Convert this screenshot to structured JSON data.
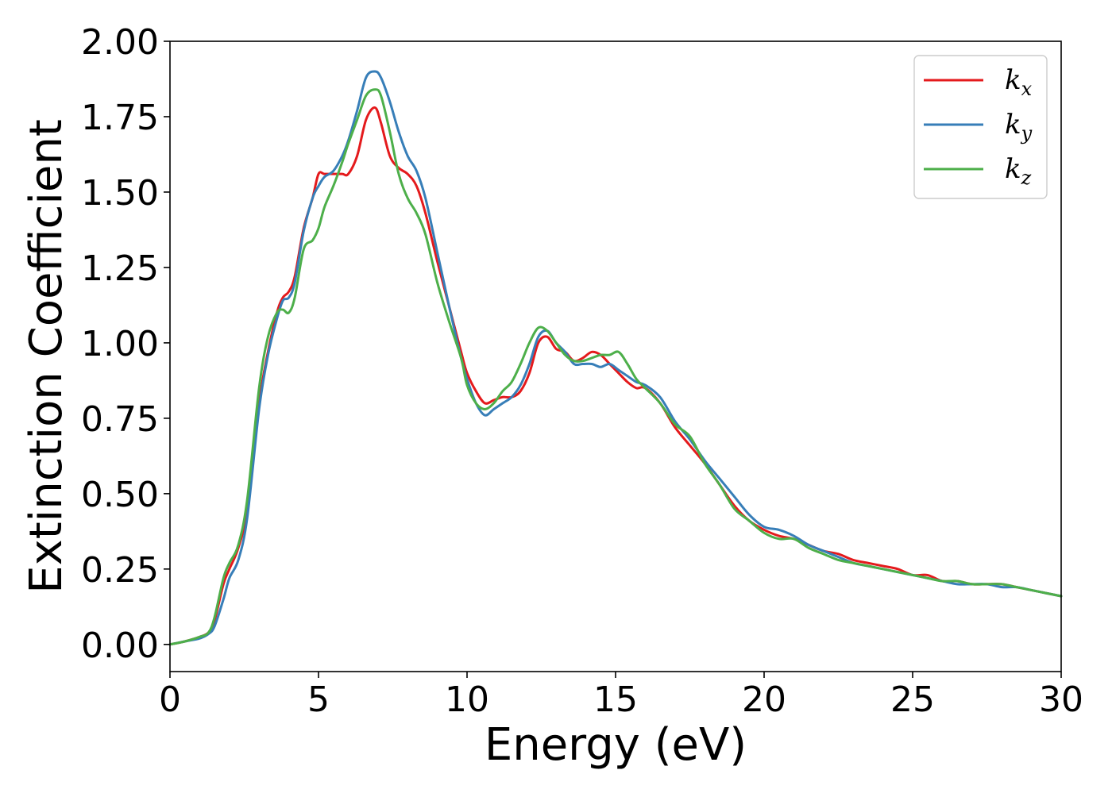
{
  "chart_data": {
    "type": "line",
    "xlabel": "Energy (eV)",
    "ylabel": "Extinction Coefficient",
    "xlim": [
      0,
      30
    ],
    "ylim": [
      -0.09,
      2.0
    ],
    "xticks": [
      0,
      5,
      10,
      15,
      20,
      25,
      30
    ],
    "xtick_labels": [
      "0",
      "5",
      "10",
      "15",
      "20",
      "25",
      "30"
    ],
    "yticks": [
      0.0,
      0.25,
      0.5,
      0.75,
      1.0,
      1.25,
      1.5,
      1.75,
      2.0
    ],
    "ytick_labels": [
      "0.00",
      "0.25",
      "0.50",
      "0.75",
      "1.00",
      "1.25",
      "1.50",
      "1.75",
      "2.00"
    ],
    "grid": false,
    "legend_position": "top-right",
    "series": [
      {
        "name": "k_x",
        "label_main": "k",
        "label_sub": "x",
        "color": "#e41a1c",
        "x": [
          0,
          0.5,
          1.0,
          1.3,
          1.5,
          1.8,
          2.0,
          2.3,
          2.6,
          3.0,
          3.3,
          3.6,
          3.8,
          4.0,
          4.2,
          4.5,
          4.8,
          5.0,
          5.2,
          5.5,
          5.8,
          6.0,
          6.3,
          6.6,
          6.9,
          7.1,
          7.4,
          7.7,
          8.0,
          8.3,
          8.6,
          9.0,
          9.4,
          9.8,
          10.0,
          10.3,
          10.6,
          10.9,
          11.2,
          11.5,
          11.8,
          12.1,
          12.4,
          12.7,
          13.0,
          13.3,
          13.6,
          13.9,
          14.2,
          14.5,
          14.8,
          15.1,
          15.4,
          15.7,
          16.0,
          16.5,
          17.0,
          17.5,
          18.0,
          18.5,
          19.0,
          19.5,
          20.0,
          20.5,
          21.0,
          21.5,
          22.0,
          22.5,
          23.0,
          23.5,
          24.0,
          24.5,
          25.0,
          25.5,
          26.0,
          26.5,
          27.0,
          27.5,
          28.0,
          28.5,
          29.0,
          29.5,
          30.0
        ],
        "y": [
          0.0,
          0.01,
          0.025,
          0.04,
          0.08,
          0.2,
          0.25,
          0.32,
          0.45,
          0.8,
          0.97,
          1.1,
          1.15,
          1.17,
          1.22,
          1.38,
          1.48,
          1.56,
          1.56,
          1.56,
          1.56,
          1.56,
          1.62,
          1.74,
          1.78,
          1.73,
          1.62,
          1.58,
          1.56,
          1.52,
          1.43,
          1.27,
          1.12,
          0.97,
          0.9,
          0.84,
          0.8,
          0.81,
          0.82,
          0.82,
          0.84,
          0.9,
          1.0,
          1.02,
          0.98,
          0.97,
          0.94,
          0.95,
          0.97,
          0.96,
          0.93,
          0.9,
          0.87,
          0.85,
          0.85,
          0.8,
          0.72,
          0.66,
          0.6,
          0.53,
          0.46,
          0.41,
          0.38,
          0.36,
          0.35,
          0.33,
          0.31,
          0.3,
          0.28,
          0.27,
          0.26,
          0.25,
          0.23,
          0.23,
          0.21,
          0.21,
          0.2,
          0.2,
          0.2,
          0.19,
          0.18,
          0.17,
          0.16
        ]
      },
      {
        "name": "k_y",
        "label_main": "k",
        "label_sub": "y",
        "color": "#377eb8",
        "x": [
          0,
          0.5,
          1.0,
          1.3,
          1.5,
          1.8,
          2.0,
          2.3,
          2.6,
          3.0,
          3.3,
          3.6,
          3.8,
          4.0,
          4.2,
          4.5,
          4.8,
          5.0,
          5.2,
          5.5,
          5.8,
          6.0,
          6.3,
          6.6,
          6.9,
          7.1,
          7.4,
          7.7,
          8.0,
          8.3,
          8.6,
          9.0,
          9.4,
          9.8,
          10.0,
          10.3,
          10.6,
          10.9,
          11.2,
          11.5,
          11.8,
          12.1,
          12.4,
          12.7,
          13.0,
          13.3,
          13.6,
          13.9,
          14.2,
          14.5,
          14.8,
          15.1,
          15.4,
          15.7,
          16.0,
          16.5,
          17.0,
          17.5,
          18.0,
          18.5,
          19.0,
          19.5,
          20.0,
          20.5,
          21.0,
          21.5,
          22.0,
          22.5,
          23.0,
          23.5,
          24.0,
          24.5,
          25.0,
          25.5,
          26.0,
          26.5,
          27.0,
          27.5,
          28.0,
          28.5,
          29.0,
          29.5,
          30.0
        ],
        "y": [
          0.0,
          0.01,
          0.02,
          0.035,
          0.06,
          0.15,
          0.22,
          0.28,
          0.42,
          0.78,
          0.96,
          1.08,
          1.14,
          1.15,
          1.2,
          1.37,
          1.48,
          1.52,
          1.55,
          1.57,
          1.62,
          1.67,
          1.77,
          1.88,
          1.9,
          1.88,
          1.8,
          1.7,
          1.62,
          1.57,
          1.48,
          1.3,
          1.12,
          0.95,
          0.88,
          0.8,
          0.76,
          0.78,
          0.8,
          0.82,
          0.86,
          0.93,
          1.02,
          1.04,
          1.0,
          0.97,
          0.93,
          0.93,
          0.93,
          0.92,
          0.93,
          0.91,
          0.89,
          0.87,
          0.86,
          0.82,
          0.74,
          0.68,
          0.61,
          0.55,
          0.49,
          0.43,
          0.39,
          0.38,
          0.36,
          0.33,
          0.31,
          0.29,
          0.27,
          0.26,
          0.25,
          0.24,
          0.23,
          0.22,
          0.21,
          0.2,
          0.2,
          0.2,
          0.19,
          0.19,
          0.18,
          0.17,
          0.16
        ]
      },
      {
        "name": "k_z",
        "label_main": "k",
        "label_sub": "z",
        "color": "#4daf4a",
        "x": [
          0,
          0.5,
          1.0,
          1.3,
          1.5,
          1.8,
          2.0,
          2.3,
          2.6,
          3.0,
          3.3,
          3.6,
          3.8,
          4.0,
          4.2,
          4.5,
          4.8,
          5.0,
          5.2,
          5.5,
          5.8,
          6.0,
          6.3,
          6.6,
          6.9,
          7.1,
          7.4,
          7.7,
          8.0,
          8.3,
          8.6,
          9.0,
          9.4,
          9.8,
          10.0,
          10.3,
          10.6,
          10.9,
          11.2,
          11.5,
          11.8,
          12.1,
          12.4,
          12.7,
          13.0,
          13.3,
          13.6,
          13.9,
          14.2,
          14.5,
          14.8,
          15.1,
          15.4,
          15.7,
          16.0,
          16.5,
          17.0,
          17.5,
          18.0,
          18.5,
          19.0,
          19.5,
          20.0,
          20.5,
          21.0,
          21.5,
          22.0,
          22.5,
          23.0,
          23.5,
          24.0,
          24.5,
          25.0,
          25.5,
          26.0,
          26.5,
          27.0,
          27.5,
          28.0,
          28.5,
          29.0,
          29.5,
          30.0
        ],
        "y": [
          0.0,
          0.01,
          0.025,
          0.04,
          0.09,
          0.22,
          0.27,
          0.33,
          0.48,
          0.85,
          1.02,
          1.1,
          1.11,
          1.1,
          1.15,
          1.31,
          1.34,
          1.38,
          1.45,
          1.52,
          1.6,
          1.66,
          1.74,
          1.82,
          1.84,
          1.82,
          1.7,
          1.56,
          1.48,
          1.43,
          1.36,
          1.2,
          1.07,
          0.95,
          0.86,
          0.8,
          0.78,
          0.8,
          0.84,
          0.87,
          0.93,
          1.0,
          1.05,
          1.04,
          1.0,
          0.96,
          0.94,
          0.94,
          0.95,
          0.96,
          0.96,
          0.97,
          0.93,
          0.88,
          0.85,
          0.8,
          0.73,
          0.69,
          0.6,
          0.53,
          0.45,
          0.41,
          0.37,
          0.35,
          0.35,
          0.32,
          0.3,
          0.28,
          0.27,
          0.26,
          0.25,
          0.24,
          0.23,
          0.22,
          0.21,
          0.21,
          0.2,
          0.2,
          0.2,
          0.19,
          0.18,
          0.17,
          0.16
        ]
      }
    ]
  }
}
